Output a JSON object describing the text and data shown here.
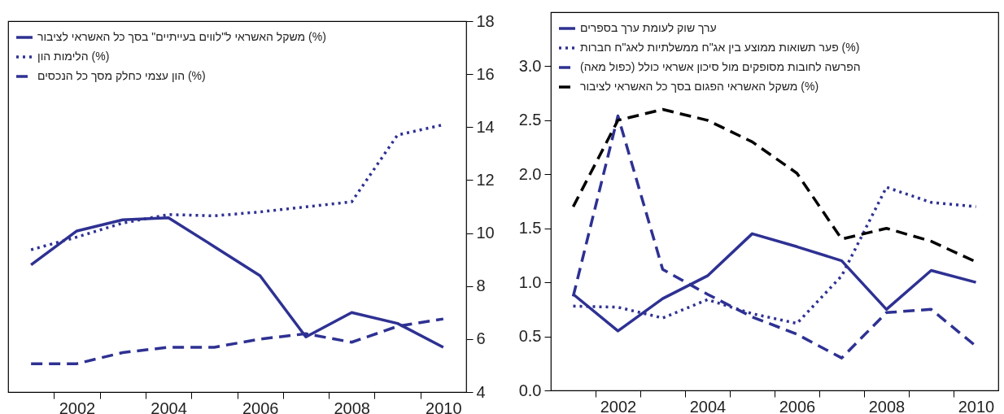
{
  "chart_data": [
    {
      "type": "line",
      "x": [
        2001,
        2002,
        2003,
        2004,
        2005,
        2006,
        2007,
        2008,
        2009,
        2010
      ],
      "series": [
        {
          "name": "משקל האשראי ל\"לווים בעייתיים\" בסך כל האשראי לציבור (%)",
          "color": "#2e3192",
          "axis": "y2",
          "values": [
            8.8,
            10.08,
            10.5,
            10.58,
            9.49,
            8.39,
            6.08,
            7.0,
            6.59,
            5.69
          ]
        },
        {
          "name": "הלימות הון (%)",
          "color": "#2e3192",
          "axis": "y2",
          "line_style": "dotted",
          "values": [
            9.37,
            9.85,
            10.38,
            10.7,
            10.65,
            10.8,
            10.99,
            11.18,
            13.7,
            14.09
          ]
        },
        {
          "name": "הון עצמי כחלק מסך כל הנכסים (%)",
          "color": "#2e3192",
          "axis": "y2",
          "line_style": "dashed",
          "values": [
            5.07,
            5.07,
            5.49,
            5.69,
            5.69,
            6.0,
            6.2,
            5.88,
            6.48,
            6.76
          ]
        }
      ],
      "xlim": [
        2000.5,
        2010.5
      ],
      "xticks": [
        {
          "value": 2001.5,
          "label": null
        },
        2002,
        {
          "value": 2002.5,
          "label": null
        },
        {
          "value": 2003.5,
          "label": null
        },
        2004,
        {
          "value": 2004.5,
          "label": null
        },
        {
          "value": 2005.5,
          "label": null
        },
        2006,
        {
          "value": 2006.5,
          "label": null
        },
        {
          "value": 2007.5,
          "label": null
        },
        2008,
        {
          "value": 2008.5,
          "label": null
        },
        {
          "value": 2009.5,
          "label": null
        },
        2010
      ],
      "y2lim": [
        4,
        18
      ],
      "y2ticks": [
        4,
        6,
        8,
        10,
        12,
        14,
        16,
        18
      ],
      "legend": "top left",
      "grid": false
    },
    {
      "type": "line",
      "x": [
        2001,
        2002,
        2003,
        2004,
        2005,
        2006,
        2007,
        2008,
        2009,
        2010
      ],
      "series": [
        {
          "name": "ערך שוק לעומת ערך בספרים",
          "color": "#2e3192",
          "values": [
            0.89,
            0.55,
            0.85,
            1.06,
            1.45,
            1.33,
            1.2,
            0.75,
            1.11,
            1.0
          ]
        },
        {
          "name": "פער תשואות ממוצע בין אג\"ח ממשלתיות לאג\"ח חברות (%)",
          "color": "#2e3192",
          "line_style": "dotted",
          "values": [
            0.78,
            0.77,
            0.67,
            0.84,
            0.71,
            0.62,
            1.06,
            1.88,
            1.74,
            1.7
          ]
        },
        {
          "name": "הפרשה לחובות מסופקים מול סיכון אשראי כולל (כפול מאה)",
          "color": "#2e3192",
          "line_style": "dashed",
          "values": [
            0.87,
            2.54,
            1.12,
            0.89,
            0.68,
            0.52,
            0.3,
            0.72,
            0.75,
            0.41
          ]
        },
        {
          "name": "משקל האשראי הפגום בסך כל האשראי לציבור (%)",
          "color": "#000000",
          "line_style": "dashed",
          "values": [
            1.7,
            2.5,
            2.6,
            2.5,
            2.3,
            2.01,
            1.4,
            1.5,
            1.38,
            1.19
          ]
        }
      ],
      "xlim": [
        2000.5,
        2010.5
      ],
      "xticks": [
        {
          "value": 2001.5,
          "label": null
        },
        2002,
        {
          "value": 2002.5,
          "label": null
        },
        {
          "value": 2003.5,
          "label": null
        },
        2004,
        {
          "value": 2004.5,
          "label": null
        },
        {
          "value": 2005.5,
          "label": null
        },
        2006,
        {
          "value": 2006.5,
          "label": null
        },
        {
          "value": 2007.5,
          "label": null
        },
        2008,
        {
          "value": 2008.5,
          "label": null
        },
        {
          "value": 2009.5,
          "label": null
        },
        2010
      ],
      "ylim": [
        0,
        3.5
      ],
      "yticks": [
        {
          "value": 0,
          "label": "0.0"
        },
        0.5,
        {
          "value": 1,
          "label": "1.0"
        },
        1.5,
        {
          "value": 2,
          "label": "2.0"
        },
        2.5,
        {
          "value": 3,
          "label": "3.0"
        }
      ],
      "legend": "top left",
      "grid": false
    }
  ]
}
